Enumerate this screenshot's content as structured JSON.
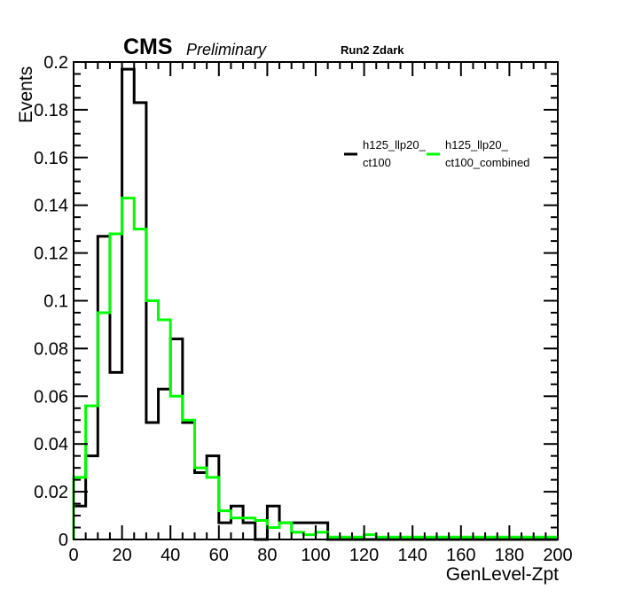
{
  "header": {
    "cms": "CMS",
    "preliminary": "Preliminary",
    "run": "Run2 Zdark"
  },
  "colors": {
    "background": "#ffffff",
    "frame": "#000000"
  },
  "chart_data": {
    "type": "line",
    "step": true,
    "xlabel": "GenLevel-Zpt",
    "ylabel": "Events",
    "xlim": [
      0,
      200
    ],
    "ylim": [
      0,
      0.2
    ],
    "x_ticks": [
      0,
      20,
      40,
      60,
      80,
      100,
      120,
      140,
      160,
      180,
      200
    ],
    "y_ticks": [
      0,
      0.02,
      0.04,
      0.06,
      0.08,
      0.1,
      0.12,
      0.14,
      0.16,
      0.18,
      0.2
    ],
    "x_tick_labels": [
      "0",
      "20",
      "40",
      "60",
      "80",
      "100",
      "120",
      "140",
      "160",
      "180",
      "200"
    ],
    "y_tick_labels": [
      "0",
      "0.02",
      "0.04",
      "0.06",
      "0.08",
      "0.1",
      "0.12",
      "0.14",
      "0.16",
      "0.18",
      "0.2"
    ],
    "grid": false,
    "legend_position": "top-right",
    "bin_edges": [
      0,
      5,
      10,
      15,
      20,
      25,
      30,
      35,
      40,
      45,
      50,
      55,
      60,
      65,
      70,
      75,
      80,
      85,
      90,
      95,
      100,
      105,
      110,
      115,
      120,
      125,
      130,
      135,
      140,
      145,
      150,
      155,
      160,
      165,
      170,
      175,
      180,
      185,
      190,
      195,
      200
    ],
    "series": [
      {
        "name": "h125_llp20_ ct100",
        "label_lines": [
          "h125_llp20_",
          "ct100"
        ],
        "color": "#000000",
        "values": [
          0.014,
          0.035,
          0.127,
          0.07,
          0.197,
          0.183,
          0.049,
          0.063,
          0.084,
          0.049,
          0.028,
          0.035,
          0.007,
          0.014,
          0.007,
          0.0,
          0.014,
          0.007,
          0.007,
          0.007,
          0.007,
          0,
          0,
          0,
          0,
          0,
          0,
          0,
          0,
          0,
          0,
          0,
          0,
          0,
          0,
          0,
          0,
          0,
          0,
          0
        ]
      },
      {
        "name": "h125_llp20_ ct100_combined",
        "label_lines": [
          "h125_llp20_",
          "ct100_combined"
        ],
        "color": "#00ff00",
        "values": [
          0.026,
          0.056,
          0.095,
          0.128,
          0.143,
          0.13,
          0.1,
          0.092,
          0.06,
          0.05,
          0.03,
          0.026,
          0.012,
          0.009,
          0.009,
          0.008,
          0.005,
          0.007,
          0.003,
          0.002,
          0.003,
          0.001,
          0.001,
          0.001,
          0.002,
          0.001,
          0.001,
          0.001,
          0.001,
          0.001,
          0.001,
          0.001,
          0.001,
          0.001,
          0.001,
          0.001,
          0.001,
          0.001,
          0.001,
          0.001
        ]
      }
    ]
  }
}
